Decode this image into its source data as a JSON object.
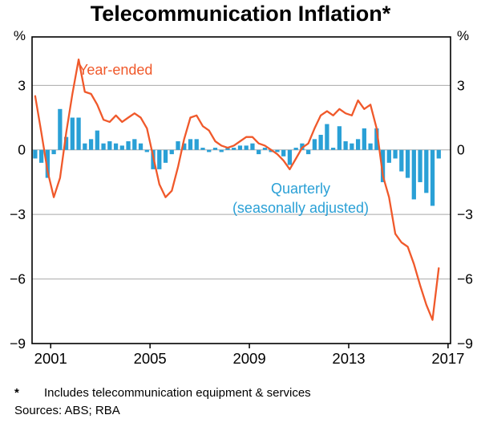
{
  "title": "Telecommunication Inflation*",
  "annotations": {
    "year_ended": "Year-ended",
    "quarterly_line1": "Quarterly",
    "quarterly_line2": "(seasonally adjusted)"
  },
  "footnote": {
    "marker": "*",
    "text": "Includes telecommunication equipment & services",
    "sources": "Sources: ABS; RBA"
  },
  "chart_data": {
    "type": "bar+line",
    "title": "Telecommunication Inflation*",
    "unit": "%",
    "x_start": 2000.375,
    "x_step": 0.25,
    "quarters": [
      "2000 Q2",
      "2000 Q3",
      "2000 Q4",
      "2001 Q1",
      "2001 Q2",
      "2001 Q3",
      "2001 Q4",
      "2002 Q1",
      "2002 Q2",
      "2002 Q3",
      "2002 Q4",
      "2003 Q1",
      "2003 Q2",
      "2003 Q3",
      "2003 Q4",
      "2004 Q1",
      "2004 Q2",
      "2004 Q3",
      "2004 Q4",
      "2005 Q1",
      "2005 Q2",
      "2005 Q3",
      "2005 Q4",
      "2006 Q1",
      "2006 Q2",
      "2006 Q3",
      "2006 Q4",
      "2007 Q1",
      "2007 Q2",
      "2007 Q3",
      "2007 Q4",
      "2008 Q1",
      "2008 Q2",
      "2008 Q3",
      "2008 Q4",
      "2009 Q1",
      "2009 Q2",
      "2009 Q3",
      "2009 Q4",
      "2010 Q1",
      "2010 Q2",
      "2010 Q3",
      "2010 Q4",
      "2011 Q1",
      "2011 Q2",
      "2011 Q3",
      "2011 Q4",
      "2012 Q1",
      "2012 Q2",
      "2012 Q3",
      "2012 Q4",
      "2013 Q1",
      "2013 Q2",
      "2013 Q3",
      "2013 Q4",
      "2014 Q1",
      "2014 Q2",
      "2014 Q3",
      "2014 Q4",
      "2015 Q1",
      "2015 Q2",
      "2015 Q3",
      "2015 Q4",
      "2016 Q1",
      "2016 Q2",
      "2016 Q3"
    ],
    "series": [
      {
        "name": "Quarterly (seasonally adjusted)",
        "type": "bar",
        "color": "#2aa0d6",
        "values": [
          -0.4,
          -0.6,
          -1.3,
          -0.2,
          1.9,
          0.6,
          1.5,
          1.5,
          0.3,
          0.5,
          0.9,
          0.3,
          0.4,
          0.3,
          0.2,
          0.4,
          0.5,
          0.3,
          -0.1,
          -0.9,
          -0.9,
          -0.6,
          -0.2,
          0.4,
          0.3,
          0.5,
          0.5,
          0.1,
          -0.1,
          0.1,
          -0.1,
          0.1,
          0.1,
          0.2,
          0.2,
          0.3,
          -0.2,
          0.1,
          -0.1,
          -0.1,
          -0.3,
          -0.7,
          0.1,
          0.3,
          -0.2,
          0.5,
          0.7,
          1.2,
          0.1,
          1.1,
          0.4,
          0.3,
          0.5,
          1.0,
          0.3,
          1.0,
          -1.5,
          -0.6,
          -0.4,
          -1.0,
          -1.3,
          -2.3,
          -1.5,
          -2.0,
          -2.6,
          -0.4
        ]
      },
      {
        "name": "Year-ended",
        "type": "line",
        "color": "#f0592b",
        "values": [
          2.5,
          0.8,
          -1.0,
          -2.2,
          -1.3,
          0.8,
          2.6,
          4.2,
          2.7,
          2.6,
          2.1,
          1.4,
          1.3,
          1.6,
          1.3,
          1.5,
          1.7,
          1.5,
          1.0,
          -0.3,
          -1.6,
          -2.2,
          -1.9,
          -0.8,
          0.5,
          1.5,
          1.6,
          1.1,
          0.9,
          0.4,
          0.2,
          0.1,
          0.2,
          0.4,
          0.6,
          0.6,
          0.3,
          0.2,
          0.0,
          -0.2,
          -0.5,
          -0.9,
          -0.4,
          0.1,
          0.3,
          1.0,
          1.6,
          1.8,
          1.6,
          1.9,
          1.7,
          1.6,
          2.3,
          1.9,
          2.1,
          1.0,
          -1.2,
          -2.2,
          -3.9,
          -4.3,
          -4.5,
          -5.3,
          -6.3,
          -7.2,
          -7.9,
          -5.5
        ]
      }
    ],
    "y_axis": {
      "min": -9,
      "max": 5.25,
      "ticks": [
        3,
        0,
        -3,
        -6,
        -9
      ],
      "label_left": "%",
      "label_right": "%"
    },
    "x_axis": {
      "min": 2000.25,
      "max": 2017.1,
      "ticks": [
        2001,
        2005,
        2009,
        2013,
        2017
      ]
    },
    "grid": true,
    "legend_position": "annotations-on-plot"
  }
}
